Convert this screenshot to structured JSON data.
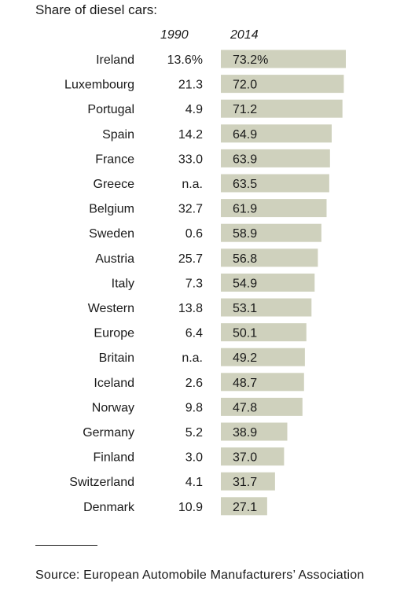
{
  "chart_data": {
    "type": "bar",
    "title": "Share of diesel cars:",
    "columns": [
      "1990",
      "2014"
    ],
    "categories": [
      "Ireland",
      "Luxembourg",
      "Portugal",
      "Spain",
      "France",
      "Greece",
      "Belgium",
      "Sweden",
      "Austria",
      "Italy",
      "Western",
      "Europe",
      "Britain",
      "Iceland",
      "Norway",
      "Germany",
      "Finland",
      "Switzerland",
      "Denmark"
    ],
    "labels_1990": [
      "13.6%",
      "21.3",
      "4.9",
      "14.2",
      "33.0",
      "n.a.",
      "32.7",
      "0.6",
      "25.7",
      "7.3",
      "13.8",
      "6.4",
      "n.a.",
      "2.6",
      "9.8",
      "5.2",
      "3.0",
      "4.1",
      "10.9"
    ],
    "series": [
      {
        "name": "2014",
        "values": [
          73.2,
          72.0,
          71.2,
          64.9,
          63.9,
          63.5,
          61.9,
          58.9,
          56.8,
          54.9,
          53.1,
          50.1,
          49.2,
          48.7,
          47.8,
          38.9,
          37.0,
          31.7,
          27.1
        ],
        "labels": [
          "73.2%",
          "72.0",
          "71.2",
          "64.9",
          "63.9",
          "63.5",
          "61.9",
          "58.9",
          "56.8",
          "54.9",
          "53.1",
          "50.1",
          "49.2",
          "48.7",
          "47.8",
          "38.9",
          "37.0",
          "31.7",
          "27.1"
        ]
      }
    ],
    "xlim": [
      0,
      73.2
    ],
    "bar_color": "#cfd1bd",
    "grid": false
  },
  "source": "Source: European Automobile Manufacturers’ Association"
}
